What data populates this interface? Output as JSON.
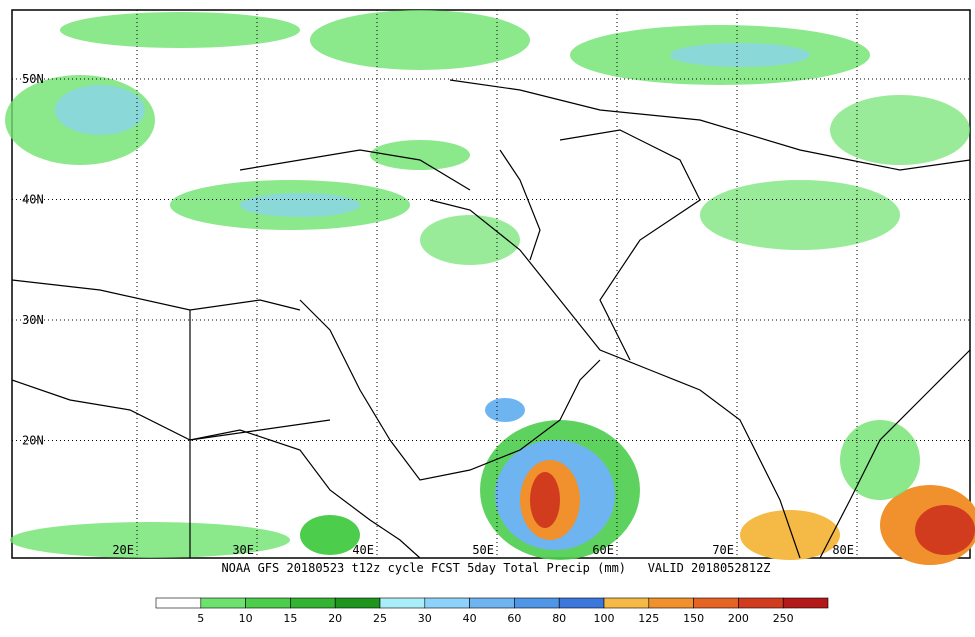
{
  "map": {
    "lat_labels": [
      "50N",
      "40N",
      "30N",
      "20N"
    ],
    "lon_labels": [
      "20E",
      "30E",
      "40E",
      "50E",
      "60E",
      "70E",
      "80E"
    ],
    "caption": "NOAA GFS 20180523 t12z cycle FCST 5day Total Precip (mm)   VALID 2018052812Z",
    "colorbar": {
      "labels": [
        "5",
        "10",
        "15",
        "20",
        "25",
        "30",
        "40",
        "60",
        "80",
        "100",
        "125",
        "150",
        "200",
        "250"
      ],
      "colors": [
        "#ffffff",
        "#6ee26e",
        "#4ccd4c",
        "#32b432",
        "#1e961e",
        "#aaeefa",
        "#8cd2fa",
        "#6eb4f0",
        "#5096e6",
        "#3c78dc",
        "#f5b946",
        "#f0912d",
        "#e66423",
        "#d23c1e",
        "#b41919"
      ]
    }
  }
}
